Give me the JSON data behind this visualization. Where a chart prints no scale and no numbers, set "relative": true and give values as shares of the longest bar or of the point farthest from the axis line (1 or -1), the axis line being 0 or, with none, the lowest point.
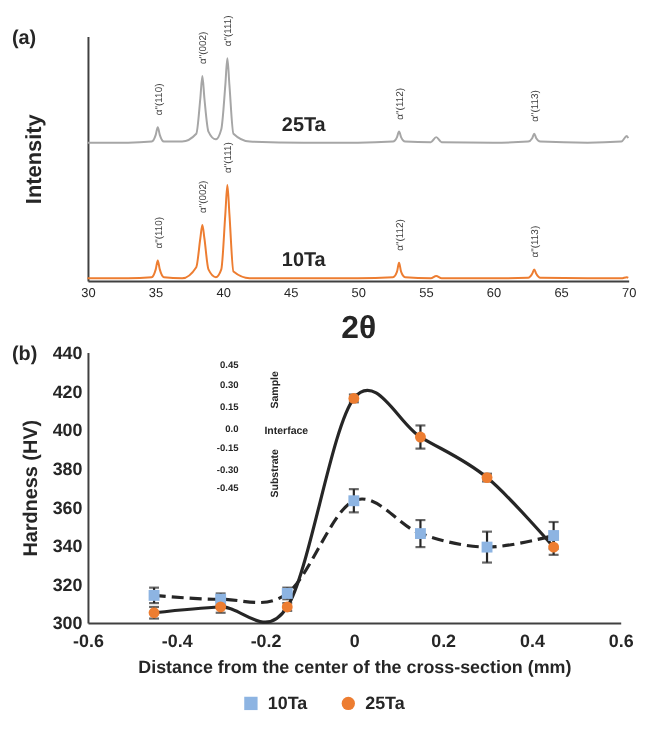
{
  "chart_data": [
    {
      "type": "line",
      "title": "(a)",
      "xlabel": "2θ",
      "ylabel": "Intensity",
      "relative": true,
      "x": [
        30,
        33,
        34.75,
        35.05,
        35.2,
        35.35,
        35.65,
        37,
        38.05,
        38.35,
        38.5,
        38.65,
        38.95,
        39.5,
        39.9,
        40.2,
        40.35,
        40.5,
        40.8,
        42,
        46,
        50,
        52.6,
        52.9,
        53.05,
        53.2,
        53.5,
        55.4,
        55.8,
        56.2,
        60,
        62.6,
        62.9,
        63.05,
        63.2,
        63.5,
        67,
        69.5,
        69.9,
        70
      ],
      "xlim": [
        30,
        70
      ],
      "xticks": [
        30,
        35,
        40,
        45,
        50,
        55,
        60,
        65,
        70
      ],
      "series": [
        {
          "name": "25Ta",
          "color": "#a6a6a6",
          "values": [
            0.62,
            0.62,
            0.625,
            0.655,
            0.69,
            0.655,
            0.625,
            0.625,
            0.66,
            0.82,
            0.92,
            0.82,
            0.67,
            0.635,
            0.68,
            0.88,
            1.0,
            0.88,
            0.66,
            0.625,
            0.62,
            0.62,
            0.625,
            0.645,
            0.67,
            0.645,
            0.625,
            0.622,
            0.645,
            0.622,
            0.62,
            0.625,
            0.64,
            0.66,
            0.64,
            0.625,
            0.62,
            0.625,
            0.65,
            0.64
          ]
        },
        {
          "name": "10Ta",
          "color": "#ed7d31",
          "values": [
            0.01,
            0.01,
            0.015,
            0.05,
            0.09,
            0.05,
            0.015,
            0.01,
            0.06,
            0.19,
            0.25,
            0.19,
            0.05,
            0.015,
            0.05,
            0.3,
            0.43,
            0.3,
            0.04,
            0.01,
            0.01,
            0.01,
            0.015,
            0.04,
            0.08,
            0.04,
            0.015,
            0.01,
            0.02,
            0.01,
            0.01,
            0.012,
            0.03,
            0.05,
            0.03,
            0.012,
            0.01,
            0.01,
            0.015,
            0.012
          ]
        }
      ],
      "annotations": [
        {
          "text": "α\"(110)",
          "x": 35.2,
          "y": 0.69
        },
        {
          "text": "α\"(002)",
          "x": 38.5,
          "y": 0.92
        },
        {
          "text": "α\"(111)",
          "x": 40.35,
          "y": 1.0
        },
        {
          "text": "α\"(112)",
          "x": 53.05,
          "y": 0.67
        },
        {
          "text": "α\"(113)",
          "x": 63.05,
          "y": 0.66
        },
        {
          "text": "α\"(110)",
          "x": 35.2,
          "y": 0.09
        },
        {
          "text": "α\"(002)",
          "x": 38.5,
          "y": 0.25
        },
        {
          "text": "α\"(111)",
          "x": 40.35,
          "y": 0.43
        },
        {
          "text": "α\"(112)",
          "x": 53.05,
          "y": 0.08
        },
        {
          "text": "α\"(113)",
          "x": 63.05,
          "y": 0.05
        }
      ]
    },
    {
      "type": "line",
      "title": "(b)",
      "xlabel": "Distance from the center of the cross-section (mm)",
      "ylabel": "Hardness (HV)",
      "x": [
        -0.45,
        -0.3,
        -0.15,
        0,
        0.15,
        0.3,
        0.45
      ],
      "xlim": [
        -0.6,
        0.6
      ],
      "xticks": [
        -0.6,
        -0.4,
        -0.2,
        0,
        0.2,
        0.4,
        0.6
      ],
      "ylim": [
        300,
        440
      ],
      "yticks": [
        300,
        320,
        340,
        360,
        380,
        400,
        420,
        440
      ],
      "series": [
        {
          "name": "10Ta",
          "color": "#8db4e2",
          "marker": "square",
          "line_style": "dashed",
          "values": [
            314,
            312,
            315,
            363,
            346,
            339,
            345
          ],
          "errors": [
            4,
            3,
            3,
            6,
            7,
            8,
            7
          ]
        },
        {
          "name": "25Ta",
          "color": "#ed7d31",
          "marker": "circle",
          "line_style": "solid",
          "values": [
            305,
            308,
            308,
            416,
            396,
            375,
            339
          ],
          "errors": [
            3,
            3,
            2,
            2,
            6,
            2,
            4
          ]
        }
      ],
      "legend": "bottom",
      "annotations": [
        "0.45",
        "0.30",
        "0.15",
        "0.0",
        "-0.15",
        "-0.30",
        "-0.45",
        "Sample",
        "Interface",
        "Substrate"
      ]
    }
  ]
}
